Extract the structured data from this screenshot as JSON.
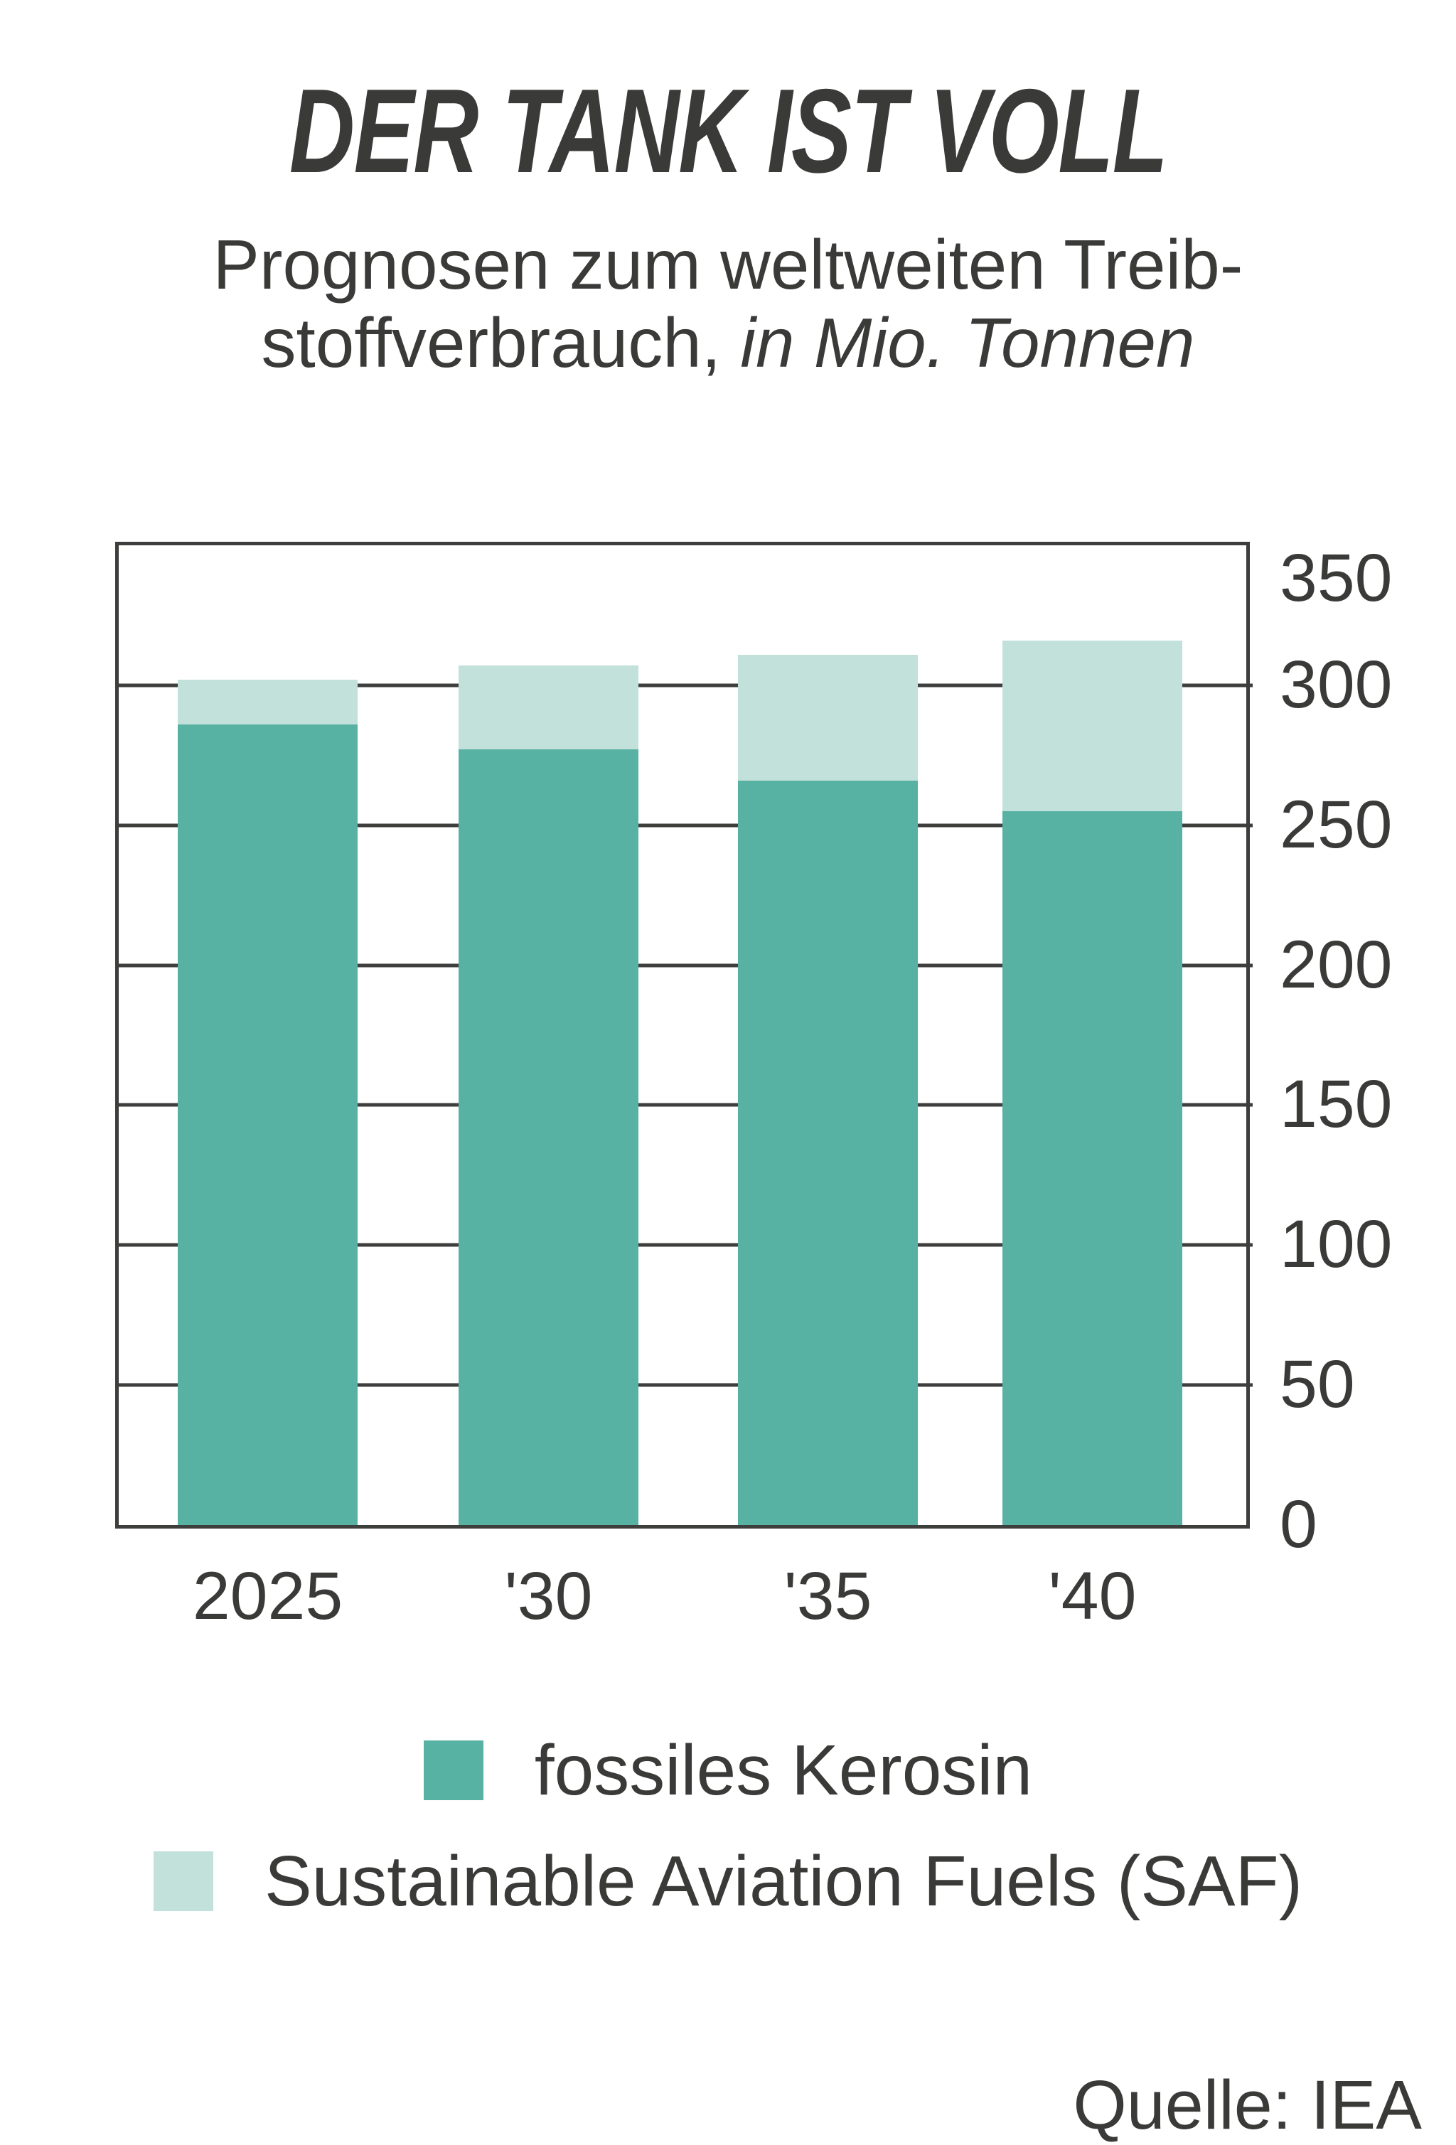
{
  "title": "DER TANK IST VOLL",
  "subtitle": {
    "line1": "Prognosen zum weltweiten Treib-",
    "line2_regular": "stoffverbrauch, ",
    "line2_italic": "in Mio. Tonnen"
  },
  "source": "Quelle: IEA",
  "colors": {
    "fossil_kerosene": "#58b2a3",
    "saf": "#c2e1da",
    "axis": "#3e3e3c",
    "text": "#3a3a38"
  },
  "chart_data": {
    "type": "bar",
    "stacked": true,
    "title": "DER TANK IST VOLL",
    "subtitle": "Prognosen zum weltweiten Treibstoffverbrauch, in Mio. Tonnen",
    "categories": [
      "2025",
      "'30",
      "'35",
      "'40"
    ],
    "series": [
      {
        "name": "fossiles Kerosin",
        "color": "#58b2a3",
        "values": [
          286,
          277,
          266,
          255
        ]
      },
      {
        "name": "Sustainable Aviation Fuels (SAF)",
        "color": "#c2e1da",
        "values": [
          16,
          30,
          45,
          61
        ]
      }
    ],
    "totals": [
      302,
      307,
      311,
      316
    ],
    "xlabel": "",
    "ylabel": "",
    "unit": "Mio. Tonnen",
    "ylim": [
      0,
      350
    ],
    "yticks": [
      350,
      300,
      250,
      200,
      150,
      100,
      50,
      0
    ],
    "grid": true,
    "legend_position": "bottom",
    "source": "Quelle: IEA"
  }
}
